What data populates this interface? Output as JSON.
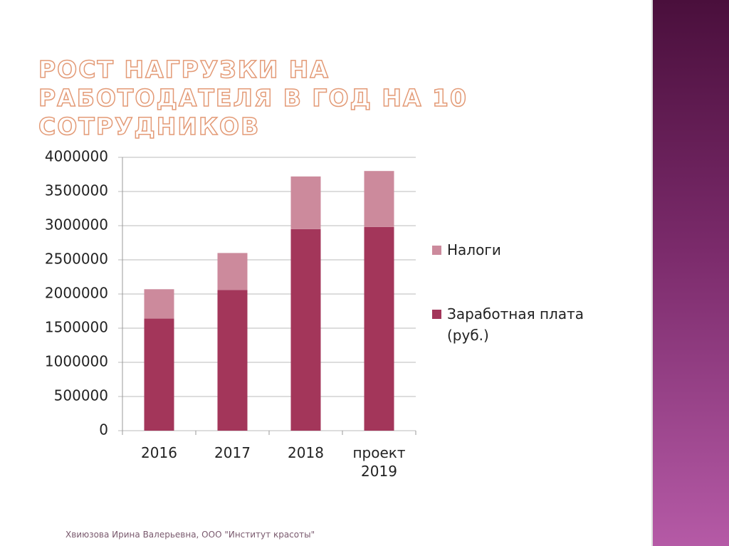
{
  "title": "РОСТ НАГРУЗКИ НА РАБОТОДАТЕЛЯ В ГОД  НА 10 СОТРУДНИКОВ",
  "footer": "Хвиюзова Ирина Валерьевна, ООО \"Институт красоты\"",
  "chart_data": {
    "type": "stacked-bar",
    "categories": [
      "2016",
      "2017",
      "2018",
      "проект 2019"
    ],
    "series": [
      {
        "name": "Заработная плата (руб.)",
        "color": "#a3365a",
        "values": [
          1640000,
          2060000,
          2950000,
          2980000
        ]
      },
      {
        "name": "Налоги",
        "color": "#cc8a9c",
        "values": [
          430000,
          540000,
          770000,
          820000
        ]
      }
    ],
    "ylim": [
      0,
      4000000
    ],
    "yticks": [
      0,
      500000,
      1000000,
      1500000,
      2000000,
      2500000,
      3000000,
      3500000,
      4000000
    ],
    "grid": true
  }
}
